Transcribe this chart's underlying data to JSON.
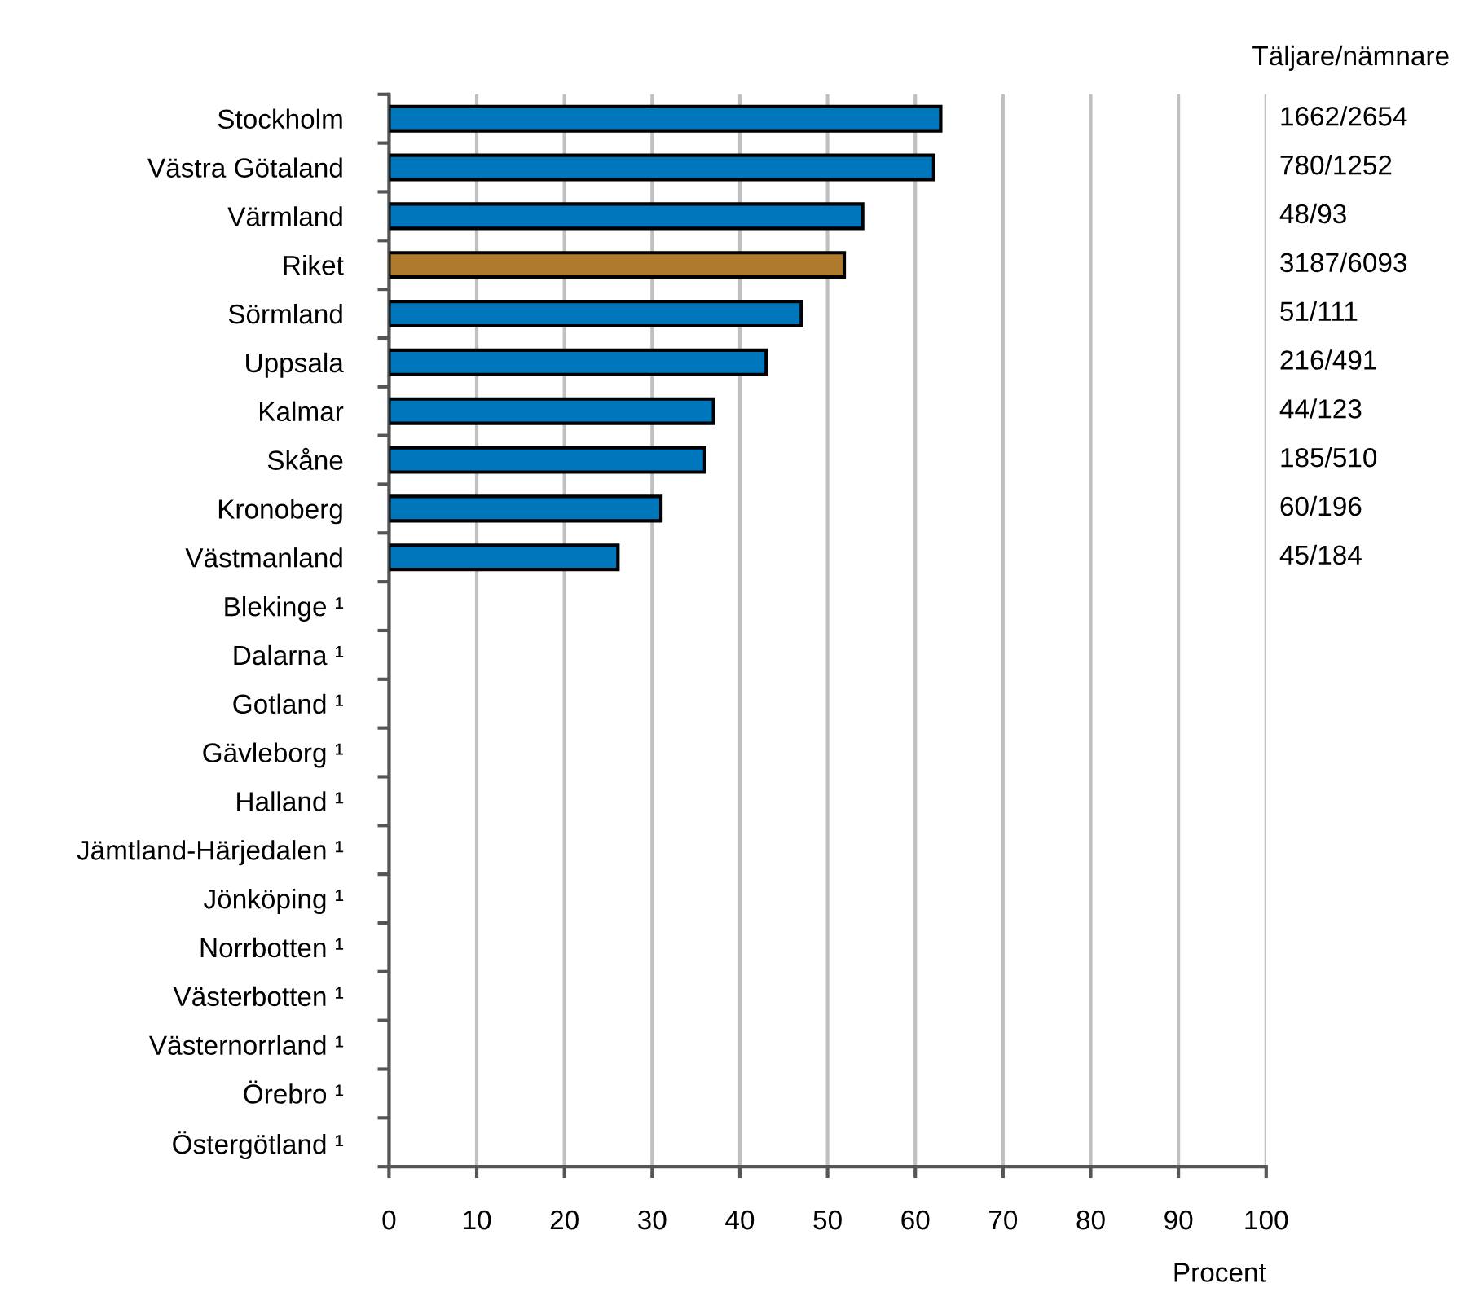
{
  "chart_data": {
    "type": "bar",
    "orientation": "horizontal",
    "xlabel": "Procent",
    "categories": [
      "Stockholm",
      "Västra Götaland",
      "Värmland",
      "Riket",
      "Sörmland",
      "Uppsala",
      "Kalmar",
      "Skåne",
      "Kronoberg",
      "Västmanland",
      "Blekinge ¹",
      "Dalarna ¹",
      "Gotland ¹",
      "Gävleborg ¹",
      "Halland ¹",
      "Jämtland-Härjedalen ¹",
      "Jönköping ¹",
      "Norrbotten ¹",
      "Västerbotten ¹",
      "Västernorrland ¹",
      "Örebro ¹",
      "Östergötland ¹"
    ],
    "values": [
      62.9,
      62.1,
      54.0,
      51.9,
      47.0,
      43.0,
      37.0,
      36.0,
      31.0,
      26.1,
      null,
      null,
      null,
      null,
      null,
      null,
      null,
      null,
      null,
      null,
      null,
      null
    ],
    "colors": [
      "#0077bd",
      "#0077bd",
      "#0077bd",
      "#b07a2c",
      "#0077bd",
      "#0077bd",
      "#0077bd",
      "#0077bd",
      "#0077bd",
      "#0077bd",
      "#0077bd",
      "#0077bd",
      "#0077bd",
      "#0077bd",
      "#0077bd",
      "#0077bd",
      "#0077bd",
      "#0077bd",
      "#0077bd",
      "#0077bd",
      "#0077bd",
      "#0077bd"
    ],
    "annotations": [
      "Täljare/nämnare",
      "1662/2654",
      "780/1252",
      "48/93",
      "3187/6093",
      "51/111",
      "216/491",
      "44/123",
      "185/510",
      "60/196",
      "45/184"
    ],
    "xlim": [
      0,
      100
    ],
    "xticks": [
      0,
      10,
      20,
      30,
      40,
      50,
      60,
      70,
      80,
      90,
      100
    ],
    "grid": "x",
    "legend": false
  }
}
